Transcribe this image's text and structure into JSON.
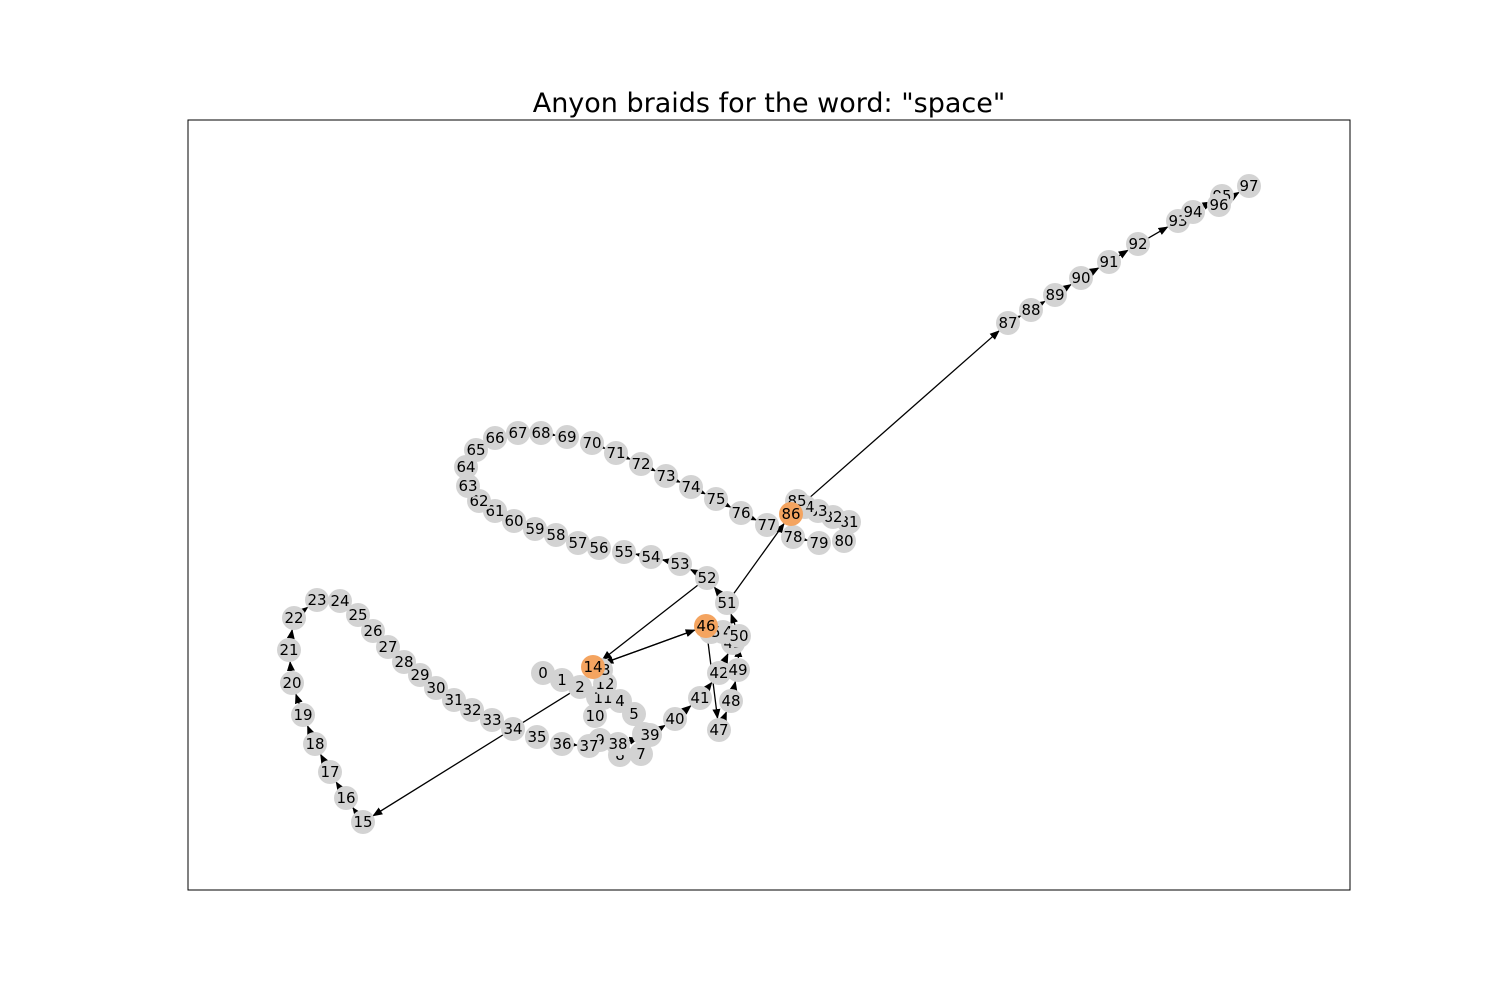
{
  "title": "Anyon braids for the word: \"space\"",
  "colors": {
    "node": "#d3d3d3",
    "highlight": "#f4a460",
    "edge": "#000000"
  },
  "nodes": [
    {
      "id": "0",
      "highlight": false
    },
    {
      "id": "1",
      "highlight": false
    },
    {
      "id": "2",
      "highlight": false
    },
    {
      "id": "3",
      "highlight": false
    },
    {
      "id": "4",
      "highlight": false
    },
    {
      "id": "5",
      "highlight": false
    },
    {
      "id": "6",
      "highlight": false
    },
    {
      "id": "7",
      "highlight": false
    },
    {
      "id": "8",
      "highlight": false
    },
    {
      "id": "9",
      "highlight": false
    },
    {
      "id": "10",
      "highlight": false
    },
    {
      "id": "11",
      "highlight": false
    },
    {
      "id": "12",
      "highlight": false
    },
    {
      "id": "13",
      "highlight": false
    },
    {
      "id": "14",
      "highlight": true
    },
    {
      "id": "15",
      "highlight": false
    },
    {
      "id": "16",
      "highlight": false
    },
    {
      "id": "17",
      "highlight": false
    },
    {
      "id": "18",
      "highlight": false
    },
    {
      "id": "19",
      "highlight": false
    },
    {
      "id": "20",
      "highlight": false
    },
    {
      "id": "21",
      "highlight": false
    },
    {
      "id": "22",
      "highlight": false
    },
    {
      "id": "23",
      "highlight": false
    },
    {
      "id": "24",
      "highlight": false
    },
    {
      "id": "25",
      "highlight": false
    },
    {
      "id": "26",
      "highlight": false
    },
    {
      "id": "27",
      "highlight": false
    },
    {
      "id": "28",
      "highlight": false
    },
    {
      "id": "29",
      "highlight": false
    },
    {
      "id": "30",
      "highlight": false
    },
    {
      "id": "31",
      "highlight": false
    },
    {
      "id": "32",
      "highlight": false
    },
    {
      "id": "33",
      "highlight": false
    },
    {
      "id": "34",
      "highlight": false
    },
    {
      "id": "35",
      "highlight": false
    },
    {
      "id": "36",
      "highlight": false
    },
    {
      "id": "37",
      "highlight": false
    },
    {
      "id": "38",
      "highlight": false
    },
    {
      "id": "39",
      "highlight": false
    },
    {
      "id": "40",
      "highlight": false
    },
    {
      "id": "41",
      "highlight": false
    },
    {
      "id": "42",
      "highlight": false
    },
    {
      "id": "43",
      "highlight": false
    },
    {
      "id": "44",
      "highlight": false
    },
    {
      "id": "45",
      "highlight": false
    },
    {
      "id": "46",
      "highlight": true
    },
    {
      "id": "47",
      "highlight": false
    },
    {
      "id": "48",
      "highlight": false
    },
    {
      "id": "49",
      "highlight": false
    },
    {
      "id": "50",
      "highlight": false
    },
    {
      "id": "51",
      "highlight": false
    },
    {
      "id": "52",
      "highlight": false
    },
    {
      "id": "53",
      "highlight": false
    },
    {
      "id": "54",
      "highlight": false
    },
    {
      "id": "55",
      "highlight": false
    },
    {
      "id": "56",
      "highlight": false
    },
    {
      "id": "57",
      "highlight": false
    },
    {
      "id": "58",
      "highlight": false
    },
    {
      "id": "59",
      "highlight": false
    },
    {
      "id": "60",
      "highlight": false
    },
    {
      "id": "61",
      "highlight": false
    },
    {
      "id": "62",
      "highlight": false
    },
    {
      "id": "63",
      "highlight": false
    },
    {
      "id": "64",
      "highlight": false
    },
    {
      "id": "65",
      "highlight": false
    },
    {
      "id": "66",
      "highlight": false
    },
    {
      "id": "67",
      "highlight": false
    },
    {
      "id": "68",
      "highlight": false
    },
    {
      "id": "69",
      "highlight": false
    },
    {
      "id": "70",
      "highlight": false
    },
    {
      "id": "71",
      "highlight": false
    },
    {
      "id": "72",
      "highlight": false
    },
    {
      "id": "73",
      "highlight": false
    },
    {
      "id": "74",
      "highlight": false
    },
    {
      "id": "75",
      "highlight": false
    },
    {
      "id": "76",
      "highlight": false
    },
    {
      "id": "77",
      "highlight": false
    },
    {
      "id": "78",
      "highlight": false
    },
    {
      "id": "79",
      "highlight": false
    },
    {
      "id": "80",
      "highlight": false
    },
    {
      "id": "81",
      "highlight": false
    },
    {
      "id": "82",
      "highlight": false
    },
    {
      "id": "83",
      "highlight": false
    },
    {
      "id": "84",
      "highlight": false
    },
    {
      "id": "85",
      "highlight": false
    },
    {
      "id": "86",
      "highlight": true
    },
    {
      "id": "87",
      "highlight": false
    },
    {
      "id": "88",
      "highlight": false
    },
    {
      "id": "89",
      "highlight": false
    },
    {
      "id": "90",
      "highlight": false
    },
    {
      "id": "91",
      "highlight": false
    },
    {
      "id": "92",
      "highlight": false
    },
    {
      "id": "93",
      "highlight": false
    },
    {
      "id": "94",
      "highlight": false
    },
    {
      "id": "95",
      "highlight": false
    },
    {
      "id": "96",
      "highlight": false
    },
    {
      "id": "97",
      "highlight": false
    }
  ]
}
